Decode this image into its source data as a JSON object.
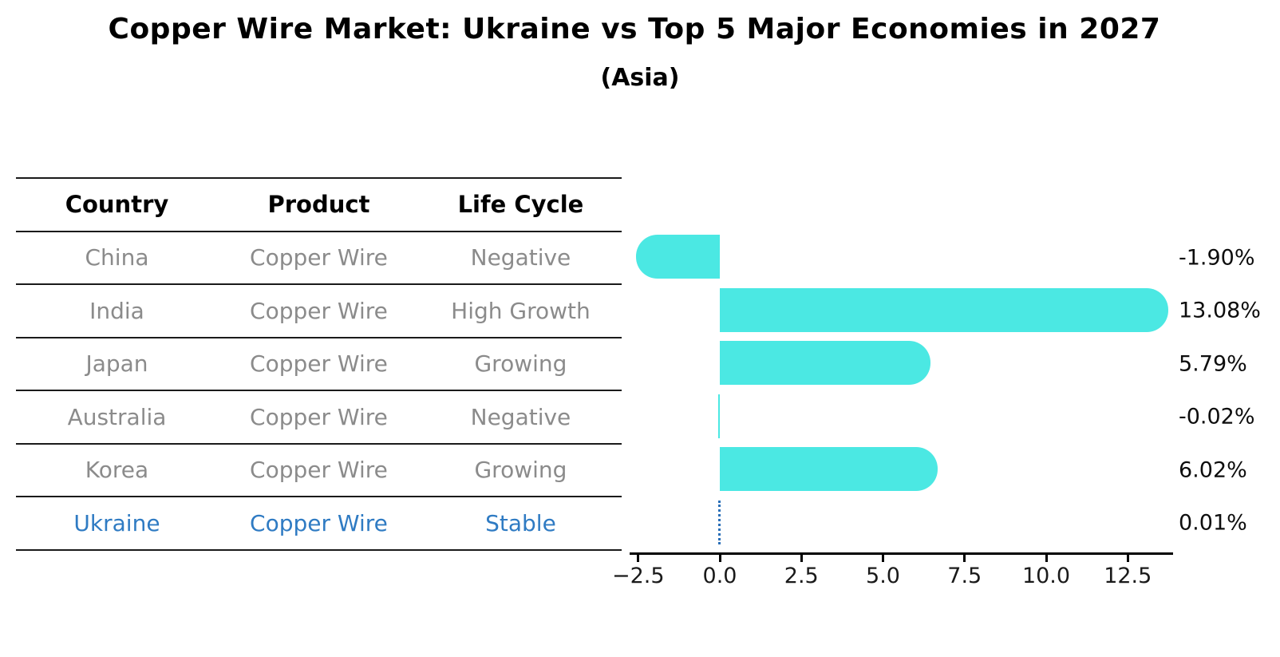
{
  "title": "Copper Wire Market: Ukraine vs Top 5 Major Economies in 2027",
  "subtitle": "(Asia)",
  "table": {
    "headers": [
      "Country",
      "Product",
      "Life Cycle"
    ],
    "rows": [
      {
        "country": "China",
        "product": "Copper Wire",
        "life_cycle": "Negative",
        "highlight": false
      },
      {
        "country": "India",
        "product": "Copper Wire",
        "life_cycle": "High Growth",
        "highlight": false
      },
      {
        "country": "Japan",
        "product": "Copper Wire",
        "life_cycle": "Growing",
        "highlight": false
      },
      {
        "country": "Australia",
        "product": "Copper Wire",
        "life_cycle": "Negative",
        "highlight": false
      },
      {
        "country": "Korea",
        "product": "Copper Wire",
        "life_cycle": "Growing",
        "highlight": false
      },
      {
        "country": "Ukraine",
        "product": "Copper Wire",
        "life_cycle": "Stable",
        "highlight": true
      }
    ]
  },
  "chart_data": {
    "type": "bar",
    "orientation": "horizontal",
    "title": "Copper Wire Market: Ukraine vs Top 5 Major Economies in 2027 (Asia)",
    "categories": [
      "China",
      "India",
      "Japan",
      "Australia",
      "Korea",
      "Ukraine"
    ],
    "values": [
      -1.9,
      13.08,
      5.79,
      -0.02,
      6.02,
      0.01
    ],
    "value_labels": [
      "-1.90%",
      "13.08%",
      "5.79%",
      "-0.02%",
      "6.02%",
      "0.01%"
    ],
    "x_ticks": [
      "−2.5",
      "0.0",
      "2.5",
      "5.0",
      "7.5",
      "10.0",
      "12.5"
    ],
    "x_tick_values": [
      -2.5,
      0.0,
      2.5,
      5.0,
      7.5,
      10.0,
      12.5
    ],
    "xlim": [
      -2.76,
      13.88
    ],
    "grid": false,
    "legend": false,
    "zero_line_category": "Ukraine",
    "bar_color": "#4be8e3",
    "highlight_color": "#2f7bc3"
  },
  "colors": {
    "bar": "#4be8e3",
    "ukraine_blue": "#2f7bc3",
    "row_text": "#8b8b8b",
    "header_text": "#000000",
    "background": "#ffffff"
  }
}
